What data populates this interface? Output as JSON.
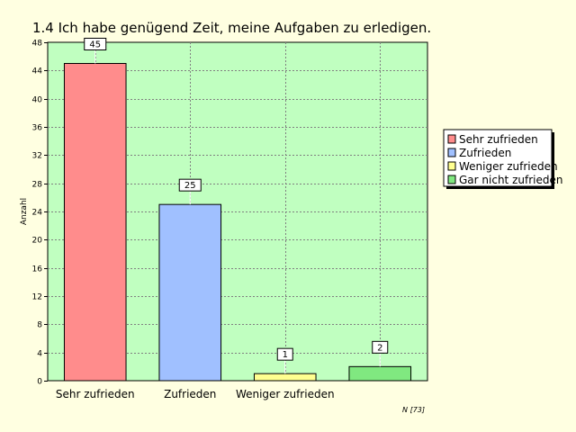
{
  "title": "1.4  Ich habe genügend Zeit, meine Aufgaben zu erledigen.",
  "footnote": "N [73]",
  "colors": {
    "background": "#ffffe1",
    "plot_area": "#c0ffc0",
    "grid": "#808080"
  },
  "chart_data": {
    "type": "bar",
    "title": "1.4  Ich habe genügend Zeit, meine Aufgaben zu erledigen.",
    "xlabel": "",
    "ylabel": "Anzahl",
    "ylim": [
      0,
      48
    ],
    "yticks": [
      0,
      4,
      8,
      12,
      16,
      20,
      24,
      28,
      32,
      36,
      40,
      44,
      48
    ],
    "grid": true,
    "legend_position": "right",
    "categories": [
      "Sehr zufrieden",
      "Zufrieden",
      "Weniger zufrieden",
      "Gar nicht zufrieden"
    ],
    "category_labels_shown": [
      "Sehr zufrieden",
      "Zufrieden",
      "Weniger zufrieden",
      ""
    ],
    "values": [
      45,
      25,
      1,
      2
    ],
    "bar_colors": [
      "#ff8c8c",
      "#a0c0ff",
      "#ffff90",
      "#80e880"
    ],
    "legend": [
      {
        "label": "Sehr zufrieden",
        "color": "#ff8c8c"
      },
      {
        "label": "Zufrieden",
        "color": "#a0c0ff"
      },
      {
        "label": "Weniger zufrieden",
        "color": "#ffff90"
      },
      {
        "label": "Gar nicht zufrieden",
        "color": "#80e880"
      }
    ]
  }
}
